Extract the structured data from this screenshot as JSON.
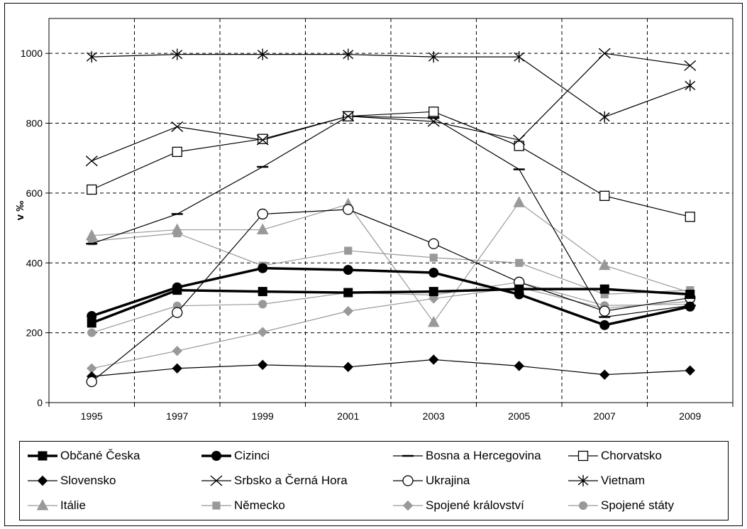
{
  "chart_data": {
    "type": "line",
    "title": "",
    "xlabel": "",
    "ylabel": "v ‰",
    "ylim": [
      0,
      1100
    ],
    "yticks": [
      0,
      200,
      400,
      600,
      800,
      1000
    ],
    "grid": true,
    "legend_position": "bottom",
    "categories": [
      "1995",
      "1997",
      "1999",
      "2001",
      "2003",
      "2005",
      "2007",
      "2009"
    ],
    "series": [
      {
        "name": "Občané Česka",
        "color": "#000000",
        "marker": "square",
        "width": "thick",
        "values": [
          228,
          322,
          318,
          315,
          318,
          325,
          325,
          310
        ]
      },
      {
        "name": "Cizinci",
        "color": "#000000",
        "marker": "circle",
        "width": "thick",
        "values": [
          248,
          330,
          385,
          380,
          372,
          310,
          222,
          275
        ]
      },
      {
        "name": "Bosna a Hercegovina",
        "color": "#000000",
        "marker": "dash",
        "width": "thin",
        "values": [
          455,
          540,
          675,
          820,
          815,
          668,
          245,
          278
        ]
      },
      {
        "name": "Chorvatsko",
        "color": "#000000",
        "marker": "open-square",
        "width": "thin",
        "values": [
          610,
          718,
          755,
          820,
          833,
          735,
          592,
          532
        ]
      },
      {
        "name": "Slovensko",
        "color": "#000000",
        "marker": "diamond",
        "width": "thin",
        "values": [
          75,
          98,
          108,
          102,
          123,
          105,
          80,
          92
        ]
      },
      {
        "name": "Srbsko a Černá Hora",
        "color": "#000000",
        "marker": "x",
        "width": "thin",
        "values": [
          692,
          790,
          752,
          820,
          805,
          752,
          1000,
          965
        ]
      },
      {
        "name": "Ukrajina",
        "color": "#000000",
        "marker": "open-circle",
        "width": "thin",
        "values": [
          60,
          258,
          540,
          553,
          455,
          345,
          262,
          300
        ]
      },
      {
        "name": "Vietnam",
        "color": "#000000",
        "marker": "star",
        "width": "thin",
        "values": [
          990,
          997,
          997,
          997,
          990,
          990,
          818,
          908
        ]
      },
      {
        "name": "Itálie",
        "color": "#999999",
        "marker": "triangle",
        "width": "thin",
        "values": [
          478,
          495,
          495,
          568,
          230,
          573,
          393,
          315
        ]
      },
      {
        "name": "Německo",
        "color": "#999999",
        "marker": "square",
        "width": "thin",
        "values": [
          462,
          485,
          392,
          435,
          415,
          400,
          310,
          322
        ]
      },
      {
        "name": "Spojené království",
        "color": "#999999",
        "marker": "diamond",
        "width": "thin",
        "values": [
          98,
          148,
          202,
          262,
          298,
          330,
          270,
          290
        ]
      },
      {
        "name": "Spojené státy",
        "color": "#999999",
        "marker": "circle",
        "width": "thin",
        "values": [
          200,
          277,
          282,
          315,
          308,
          345,
          278,
          282
        ]
      }
    ]
  }
}
